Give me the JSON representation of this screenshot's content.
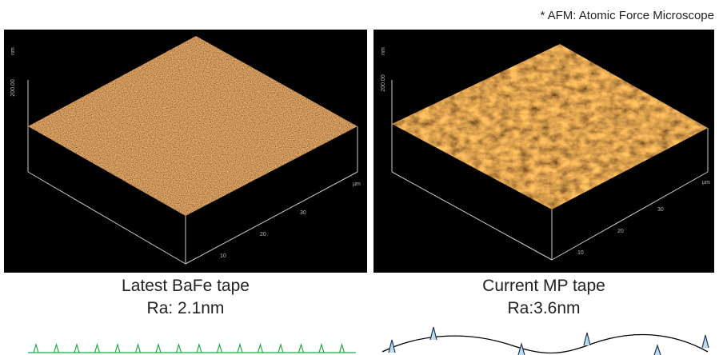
{
  "note_text": "* AFM: Atomic Force Microscope",
  "panels": [
    {
      "z_unit": "nm",
      "z_tick": "200.00",
      "xy_unit": "µm",
      "axis_ticks": [
        "10",
        "20",
        "30"
      ],
      "name": "Latest BaFe tape",
      "roughness": "Ra: 2.1nm"
    },
    {
      "z_unit": "nm",
      "z_tick": "200.00",
      "xy_unit": "µm",
      "axis_ticks": [
        "10",
        "20",
        "30"
      ],
      "name": "Current MP tape",
      "roughness": "Ra:3.6nm"
    }
  ]
}
